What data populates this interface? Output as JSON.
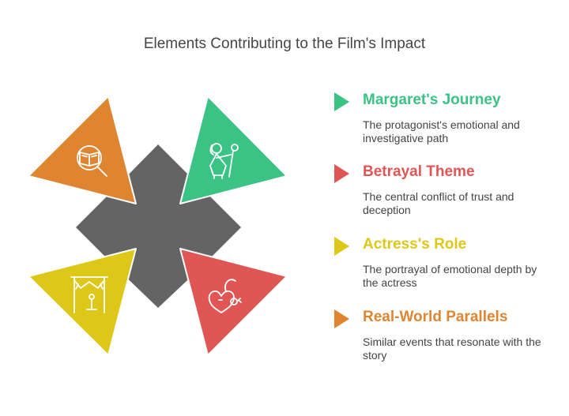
{
  "title": "Elements Contributing to the Film's Impact",
  "colors": {
    "center": "#646464",
    "green": "#3BC285",
    "red": "#E05655",
    "yellow": "#DDC81A",
    "orange": "#DF8531"
  },
  "quadrants": [
    {
      "id": "top-left",
      "color": "orange",
      "icon": "book-magnifier-icon"
    },
    {
      "id": "top-right",
      "color": "green",
      "icon": "person-with-staff-icon"
    },
    {
      "id": "bottom-left",
      "color": "yellow",
      "icon": "stage-spotlight-icon"
    },
    {
      "id": "bottom-right",
      "color": "red",
      "icon": "heart-key-icon"
    }
  ],
  "items": [
    {
      "heading": "Margaret's Journey",
      "description": "The protagonist's emotional and investigative path",
      "color": "#3BC285"
    },
    {
      "heading": "Betrayal Theme",
      "description": "The central conflict of trust and deception",
      "color": "#E05655"
    },
    {
      "heading": "Actress's Role",
      "description": "The portrayal of emotional depth by the actress",
      "color": "#DDC81A"
    },
    {
      "heading": "Real-World Parallels",
      "description": "Similar events that resonate with the story",
      "color": "#DF8531"
    }
  ]
}
